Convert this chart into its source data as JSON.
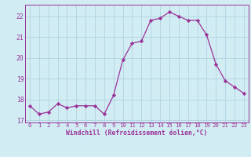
{
  "x": [
    0,
    1,
    2,
    3,
    4,
    5,
    6,
    7,
    8,
    9,
    10,
    11,
    12,
    13,
    14,
    15,
    16,
    17,
    18,
    19,
    20,
    21,
    22,
    23
  ],
  "y": [
    17.7,
    17.3,
    17.4,
    17.8,
    17.6,
    17.7,
    17.7,
    17.7,
    17.3,
    18.2,
    19.9,
    20.7,
    20.8,
    21.8,
    21.9,
    22.2,
    22.0,
    21.8,
    21.8,
    21.1,
    19.7,
    18.9,
    18.6,
    18.3
  ],
  "line_color": "#993399",
  "marker_color": "#993399",
  "bg_color": "#d2ecf4",
  "grid_color": "#b0d4e0",
  "xlabel": "Windchill (Refroidissement éolien,°C)",
  "ylim": [
    16.9,
    22.55
  ],
  "xlim": [
    -0.5,
    23.5
  ],
  "yticks": [
    17,
    18,
    19,
    20,
    21,
    22
  ],
  "xticks": [
    0,
    1,
    2,
    3,
    4,
    5,
    6,
    7,
    8,
    9,
    10,
    11,
    12,
    13,
    14,
    15,
    16,
    17,
    18,
    19,
    20,
    21,
    22,
    23
  ]
}
